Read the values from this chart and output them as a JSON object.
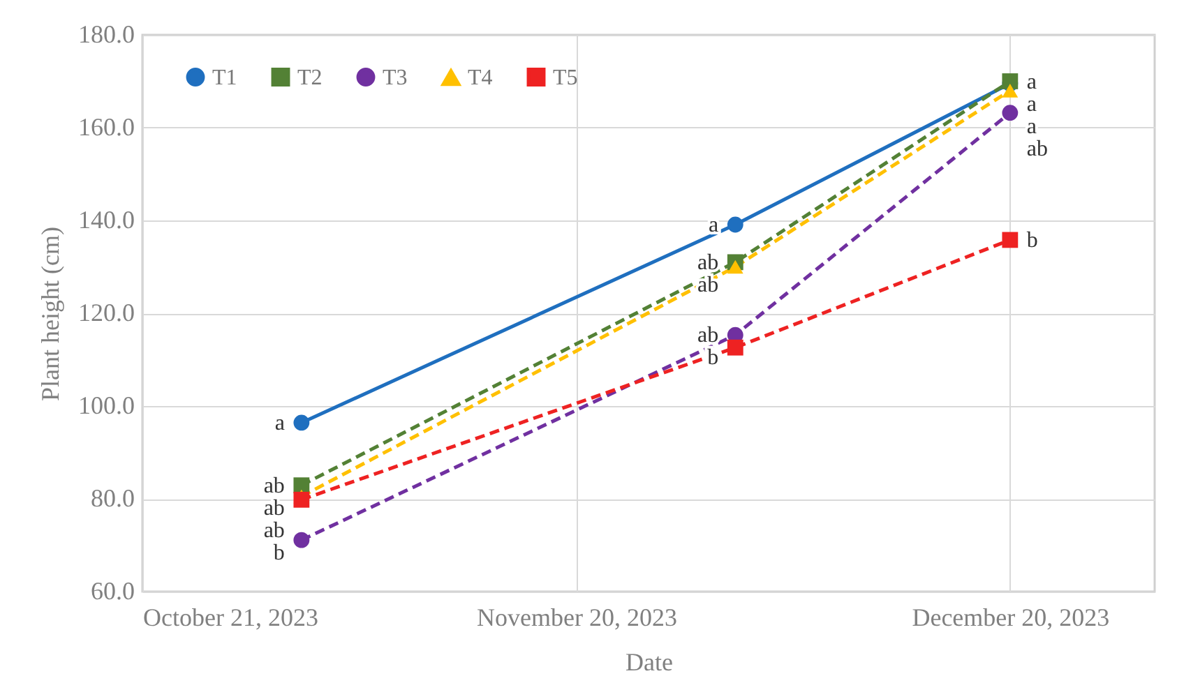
{
  "chart_data": {
    "type": "line",
    "xlabel": "Date",
    "ylabel": "Plant height (cm)",
    "x": [
      "2023-11-01",
      "2023-12-01",
      "2023-12-20"
    ],
    "series": [
      {
        "name": "T1",
        "color": "#1f6fbf",
        "values": [
          96.4,
          139.1,
          169.5
        ],
        "marker": "circle",
        "line_style": "solid"
      },
      {
        "name": "T2",
        "color": "#538135",
        "values": [
          82.9,
          131.0,
          170.0
        ],
        "marker": "square",
        "line_style": "dashed"
      },
      {
        "name": "T3",
        "color": "#7030a0",
        "values": [
          71.1,
          115.3,
          163.2
        ],
        "marker": "circle",
        "line_style": "dashed"
      },
      {
        "name": "T4",
        "color": "#ffc000",
        "values": [
          80.5,
          130.0,
          168.0
        ],
        "marker": "triangle",
        "line_style": "dashed"
      },
      {
        "name": "T5",
        "color": "#ee2222",
        "values": [
          79.8,
          112.6,
          135.8
        ],
        "marker": "square",
        "line_style": "dashed"
      }
    ],
    "xlim": [
      "2023-10-21",
      "2023-12-30"
    ],
    "xticks": [
      {
        "value": "2023-10-21",
        "label": "October 21, 2023"
      },
      {
        "value": "2023-11-20",
        "label": "November 20, 2023"
      },
      {
        "value": "2023-12-20",
        "label": "December 20, 2023"
      }
    ],
    "ylim": [
      60,
      180
    ],
    "yticks": [
      {
        "value": 60,
        "label": "60.0"
      },
      {
        "value": 80,
        "label": "80.0"
      },
      {
        "value": 100,
        "label": "100.0"
      },
      {
        "value": 120,
        "label": "120.0"
      },
      {
        "value": 140,
        "label": "140.0"
      },
      {
        "value": 160,
        "label": "160.0"
      },
      {
        "value": 180,
        "label": "180.0"
      }
    ],
    "grid": true,
    "legend": "top",
    "annotations": [
      {
        "text": "a",
        "x": "2023-11-01",
        "y": 96.4
      },
      {
        "text": "ab",
        "x": "2023-11-01",
        "y": 82.9
      },
      {
        "text": "ab",
        "x": "2023-11-01",
        "y": 80.5
      },
      {
        "text": "ab",
        "x": "2023-11-01",
        "y": 79.8
      },
      {
        "text": "b",
        "x": "2023-11-01",
        "y": 71.1
      },
      {
        "text": "a",
        "x": "2023-12-01",
        "y": 139.1
      },
      {
        "text": "ab",
        "x": "2023-12-01",
        "y": 131.0
      },
      {
        "text": "ab",
        "x": "2023-12-01",
        "y": 130.0
      },
      {
        "text": "ab",
        "x": "2023-12-01",
        "y": 115.3
      },
      {
        "text": "b",
        "x": "2023-12-01",
        "y": 112.6
      },
      {
        "text": "a",
        "x": "2023-12-20",
        "y": 170.0
      },
      {
        "text": "a",
        "x": "2023-12-20",
        "y": 169.5
      },
      {
        "text": "a",
        "x": "2023-12-20",
        "y": 168.0
      },
      {
        "text": "ab",
        "x": "2023-12-20",
        "y": 163.2
      },
      {
        "text": "b",
        "x": "2023-12-20",
        "y": 135.8
      }
    ]
  }
}
